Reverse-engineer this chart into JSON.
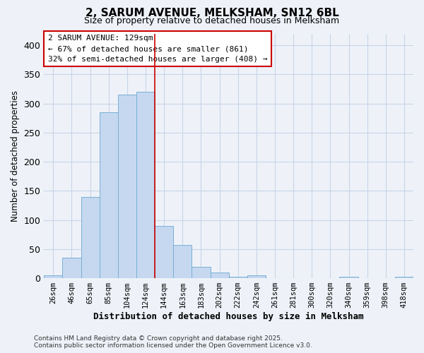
{
  "title": "2, SARUM AVENUE, MELKSHAM, SN12 6BL",
  "subtitle": "Size of property relative to detached houses in Melksham",
  "xlabel": "Distribution of detached houses by size in Melksham",
  "ylabel": "Number of detached properties",
  "bar_labels": [
    "26sqm",
    "46sqm",
    "65sqm",
    "85sqm",
    "104sqm",
    "124sqm",
    "144sqm",
    "163sqm",
    "183sqm",
    "202sqm",
    "222sqm",
    "242sqm",
    "261sqm",
    "281sqm",
    "300sqm",
    "320sqm",
    "340sqm",
    "359sqm",
    "398sqm",
    "418sqm"
  ],
  "bar_values": [
    5,
    35,
    140,
    285,
    315,
    320,
    90,
    57,
    20,
    10,
    2,
    5,
    0,
    0,
    0,
    0,
    2,
    0,
    0,
    2
  ],
  "bar_color": "#c5d8f0",
  "bar_edge_color": "#7aafd4",
  "grid_color": "#c8d4e8",
  "background_color": "#eef2f8",
  "vline_pos": 5.5,
  "vline_color": "#cc0000",
  "annotation_text": "2 SARUM AVENUE: 129sqm\n← 67% of detached houses are smaller (861)\n32% of semi-detached houses are larger (408) →",
  "annotation_box_color": "#ffffff",
  "annotation_box_edge": "#cc0000",
  "footer_line1": "Contains HM Land Registry data © Crown copyright and database right 2025.",
  "footer_line2": "Contains public sector information licensed under the Open Government Licence v3.0.",
  "ylim": [
    0,
    420
  ],
  "yticks": [
    0,
    50,
    100,
    150,
    200,
    250,
    300,
    350,
    400
  ]
}
